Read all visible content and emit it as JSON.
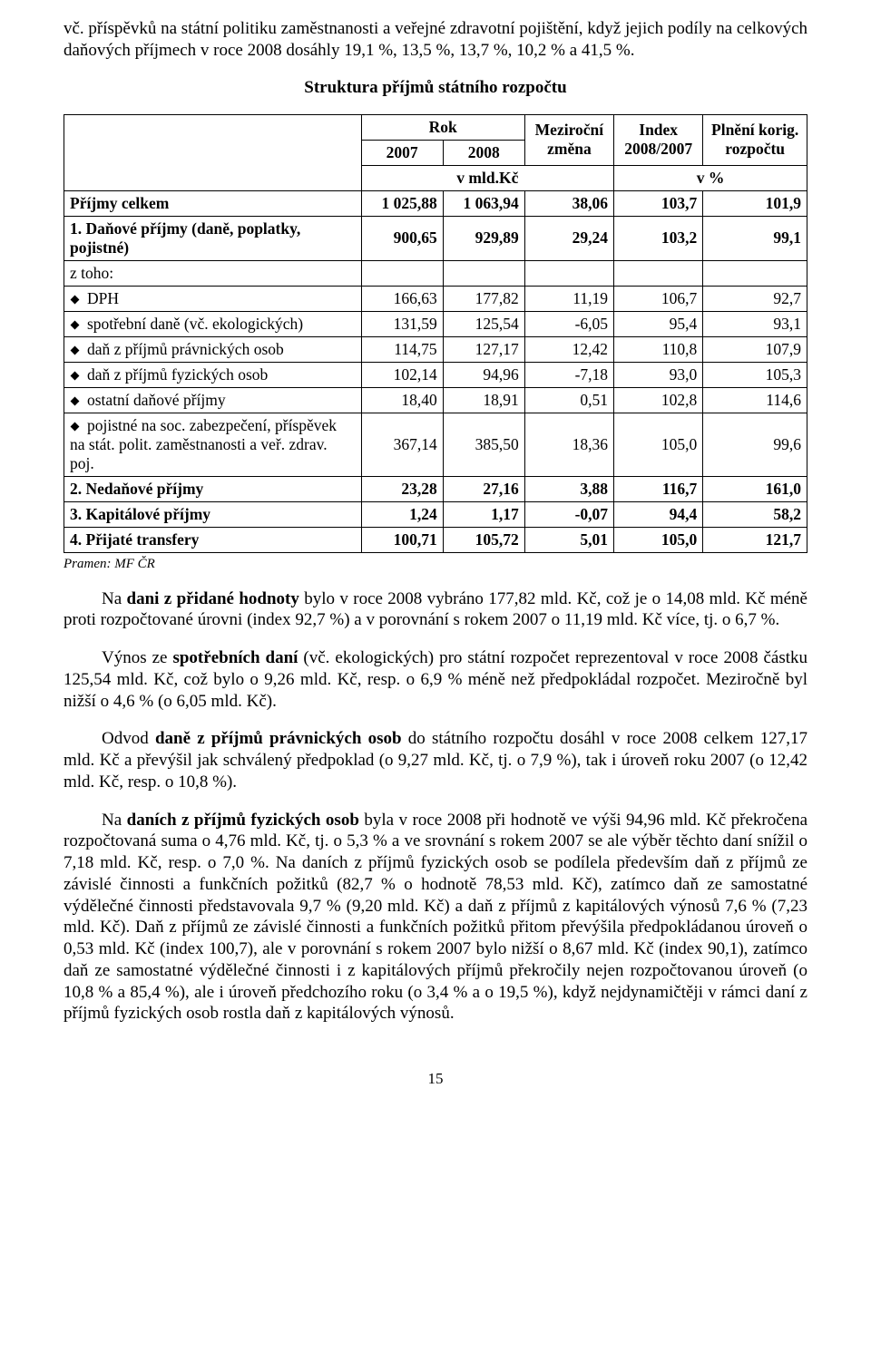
{
  "text": {
    "intro": "vč. příspěvků na státní politiku zaměstnanosti a veřejné zdravotní pojištění, když jejich podíly na celkových daňových příjmech v roce 2008 dosáhly 19,1 %, 13,5 %, 13,7 %, 10,2 % a 41,5 %.",
    "tableTitle": "Struktura příjmů státního rozpočtu",
    "p1a": "Na ",
    "p1b": "dani z přidané hodnoty",
    "p1c": " bylo v roce 2008 vybráno 177,82 mld. Kč, což je o 14,08 mld. Kč méně proti rozpočtované úrovni (index 92,7 %) a v porovnání s rokem 2007 o 11,19 mld. Kč více, tj. o 6,7 %.",
    "p2a": "Výnos ze ",
    "p2b": "spotřebních daní",
    "p2c": " (vč. ekologických) pro státní rozpočet reprezentoval v roce 2008 částku 125,54 mld. Kč, což bylo o 9,26 mld. Kč, resp. o 6,9 % méně než předpokládal rozpočet. Meziročně byl nižší o 4,6 % (o 6,05 mld. Kč).",
    "p3a": "Odvod ",
    "p3b": "daně z příjmů právnických osob",
    "p3c": " do státního rozpočtu dosáhl v roce 2008 celkem 127,17 mld. Kč a převýšil jak schválený předpoklad (o 9,27 mld. Kč, tj. o 7,9 %), tak i úroveň roku 2007 (o 12,42 mld. Kč, resp. o 10,8 %).",
    "p4a": "Na ",
    "p4b": "daních z příjmů fyzických osob",
    "p4c": " byla v roce 2008 při hodnotě ve výši 94,96 mld. Kč překročena rozpočtovaná suma o 4,76 mld. Kč, tj. o 5,3 % a ve srovnání s rokem 2007 se ale výběr těchto daní snížil o 7,18 mld. Kč, resp. o 7,0 %. Na daních z příjmů fyzických osob se podílela především daň z příjmů ze závislé činnosti a funkčních požitků (82,7 % o hodnotě 78,53 mld. Kč), zatímco daň ze samostatné výdělečné činnosti představovala 9,7 % (9,20 mld. Kč) a daň z příjmů z kapitálových výnosů 7,6 % (7,23 mld. Kč). Daň z příjmů ze závislé činnosti a funkčních požitků přitom převýšila předpokládanou úroveň o 0,53 mld. Kč (index 100,7), ale v porovnání s rokem 2007 bylo nižší o 8,67 mld. Kč (index 90,1), zatímco daň ze samostatné výdělečné činnosti i z kapitálových příjmů překročily nejen rozpočtovanou úroveň (o 10,8 % a 85,4 %), ale i úroveň předchozího roku (o 3,4 % a o 19,5 %), když nejdynamičtěji v rámci daní z příjmů fyzických osob rostla daň z kapitálových výnosů.",
    "source": "Pramen: MF ČR",
    "pageNumber": "15"
  },
  "table": {
    "header": {
      "rok": "Rok",
      "y2007": "2007",
      "y2008": "2008",
      "change": "Meziroční změna",
      "index": "Index 2008/2007",
      "fulfil": "Plnění korig. rozpočtu",
      "mldkc": "v mld.Kč",
      "vpct": "v %"
    },
    "rows": [
      {
        "bold": true,
        "sub": false,
        "label": "Příjmy celkem",
        "c": [
          "1 025,88",
          "1 063,94",
          "38,06",
          "103,7",
          "101,9"
        ]
      },
      {
        "bold": true,
        "sub": false,
        "label": "1. Daňové příjmy (daně, poplatky, pojistné)",
        "c": [
          "900,65",
          "929,89",
          "29,24",
          "103,2",
          "99,1"
        ]
      },
      {
        "bold": false,
        "sub": false,
        "label": "z toho:",
        "c": [
          "",
          "",
          "",
          "",
          ""
        ]
      },
      {
        "bold": false,
        "sub": true,
        "label": "DPH",
        "c": [
          "166,63",
          "177,82",
          "11,19",
          "106,7",
          "92,7"
        ]
      },
      {
        "bold": false,
        "sub": true,
        "label": "spotřební daně (vč. ekologických)",
        "c": [
          "131,59",
          "125,54",
          "-6,05",
          "95,4",
          "93,1"
        ]
      },
      {
        "bold": false,
        "sub": true,
        "label": "daň z příjmů právnických osob",
        "c": [
          "114,75",
          "127,17",
          "12,42",
          "110,8",
          "107,9"
        ]
      },
      {
        "bold": false,
        "sub": true,
        "label": "daň z příjmů fyzických osob",
        "c": [
          "102,14",
          "94,96",
          "-7,18",
          "93,0",
          "105,3"
        ]
      },
      {
        "bold": false,
        "sub": true,
        "label": "ostatní daňové příjmy",
        "c": [
          "18,40",
          "18,91",
          "0,51",
          "102,8",
          "114,6"
        ]
      },
      {
        "bold": false,
        "sub": true,
        "label": "pojistné na soc. zabezpečení, příspěvek na stát. polit. zaměstnanosti a veř. zdrav. poj.",
        "c": [
          "367,14",
          "385,50",
          "18,36",
          "105,0",
          "99,6"
        ]
      },
      {
        "bold": true,
        "sub": false,
        "label": "2. Nedaňové příjmy",
        "c": [
          "23,28",
          "27,16",
          "3,88",
          "116,7",
          "161,0"
        ]
      },
      {
        "bold": true,
        "sub": false,
        "label": "3. Kapitálové příjmy",
        "c": [
          "1,24",
          "1,17",
          "-0,07",
          "94,4",
          "58,2"
        ]
      },
      {
        "bold": true,
        "sub": false,
        "label": "4. Přijaté transfery",
        "c": [
          "100,71",
          "105,72",
          "5,01",
          "105,0",
          "121,7"
        ]
      }
    ],
    "colWidths": [
      "40%",
      "11%",
      "11%",
      "12%",
      "12%",
      "14%"
    ]
  }
}
